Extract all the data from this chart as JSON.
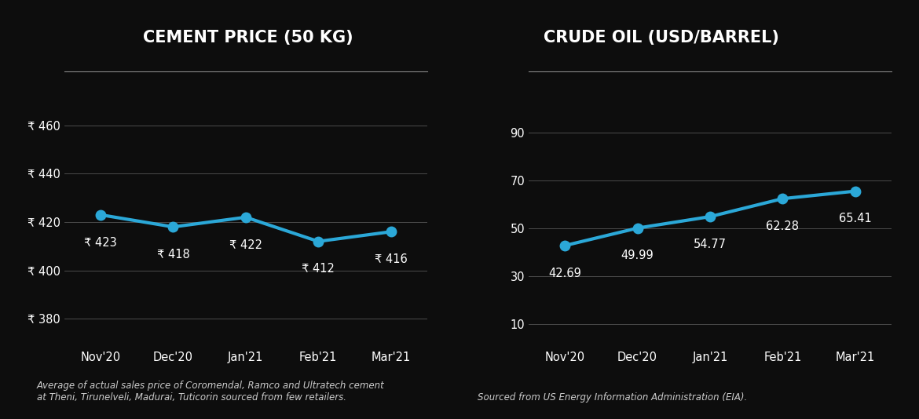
{
  "background_color": "#0d0d0d",
  "line_color": "#2ba8d8",
  "text_color": "#ffffff",
  "grid_color": "#555555",
  "annotation_color": "#ffffff",
  "footnote_color": "#cccccc",
  "separator_color": "#888888",
  "cement": {
    "title": "CEMENT PRICE (50 KG)",
    "x_labels": [
      "Nov'20",
      "Dec'20",
      "Jan'21",
      "Feb'21",
      "Mar'21"
    ],
    "values": [
      423,
      418,
      422,
      412,
      416
    ],
    "yticks": [
      380,
      400,
      420,
      440,
      460
    ],
    "ylim": [
      368,
      472
    ],
    "annotations": [
      "₹ 423",
      "₹ 418",
      "₹ 422",
      "₹ 412",
      "₹ 416"
    ],
    "ann_offsets": [
      -1,
      -1,
      -1,
      -1,
      -1
    ],
    "footnote": "Average of actual sales price of Coromendal, Ramco and Ultratech cement\nat Theni, Tirunelveli, Madurai, Tuticorin sourced from few retailers."
  },
  "oil": {
    "title": "CRUDE OIL (USD/BARREL)",
    "x_labels": [
      "Nov'20",
      "Dec'20",
      "Jan'21",
      "Feb'21",
      "Mar'21"
    ],
    "values": [
      42.69,
      49.99,
      54.77,
      62.28,
      65.41
    ],
    "yticks": [
      10,
      30,
      50,
      70,
      90
    ],
    "ylim": [
      0,
      105
    ],
    "annotations": [
      "42.69",
      "49.99",
      "54.77",
      "62.28",
      "65.41"
    ],
    "ann_offsets": [
      -1,
      -1,
      -1,
      -1,
      -1
    ],
    "footnote": "Sourced from US Energy Information Administration (EIA)."
  }
}
